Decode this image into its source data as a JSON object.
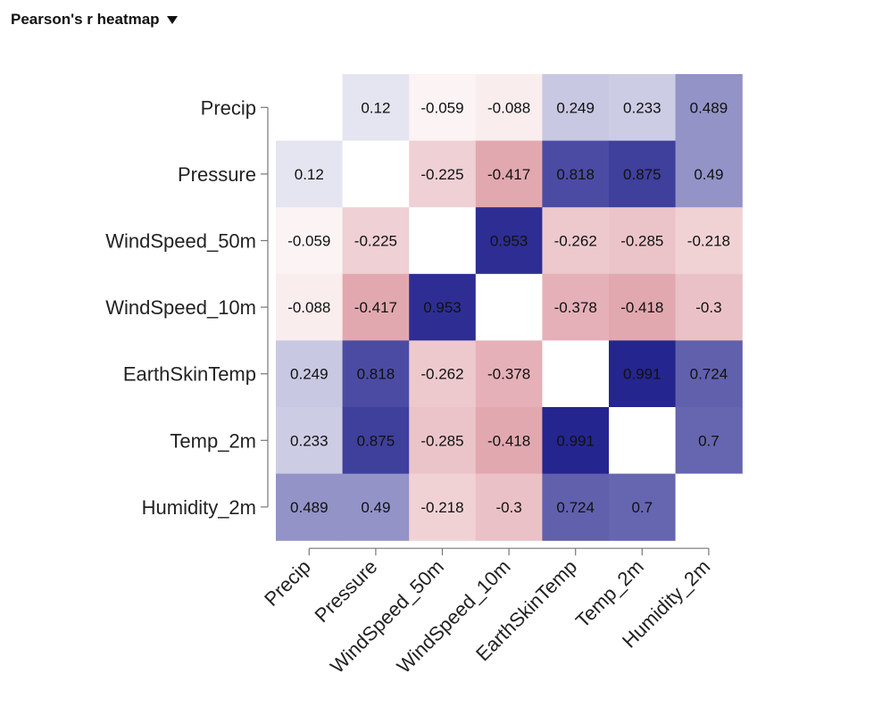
{
  "header": {
    "title": "Pearson's r heatmap",
    "toggle_icon": "triangle-down-icon"
  },
  "chart_data": {
    "type": "heatmap",
    "variables": [
      "Precip",
      "Pressure",
      "WindSpeed_50m",
      "WindSpeed_10m",
      "EarthSkinTemp",
      "Temp_2m",
      "Humidity_2m"
    ],
    "x_tick_labels": [
      "Precip",
      "Pressure",
      "WindSpeed_50m",
      "WindSpeed_10m",
      "EarthSkinTemp",
      "Temp_2m",
      "Humidity_2m"
    ],
    "y_tick_labels": [
      "Precip",
      "Pressure",
      "WindSpeed_50m",
      "WindSpeed_10m",
      "EarthSkinTemp",
      "Temp_2m",
      "Humidity_2m"
    ],
    "values": [
      [
        null,
        0.12,
        -0.059,
        -0.088,
        0.249,
        0.233,
        0.489
      ],
      [
        0.12,
        null,
        -0.225,
        -0.417,
        0.818,
        0.875,
        0.49
      ],
      [
        -0.059,
        -0.225,
        null,
        0.953,
        -0.262,
        -0.285,
        -0.218
      ],
      [
        -0.088,
        -0.417,
        0.953,
        null,
        -0.378,
        -0.418,
        -0.3
      ],
      [
        0.249,
        0.818,
        -0.262,
        -0.378,
        null,
        0.991,
        0.724
      ],
      [
        0.233,
        0.875,
        -0.285,
        -0.418,
        0.991,
        null,
        0.7
      ],
      [
        0.489,
        0.49,
        -0.218,
        -0.3,
        0.724,
        0.7,
        null
      ]
    ],
    "labels": [
      [
        "",
        "0.12",
        "-0.059",
        "-0.088",
        "0.249",
        "0.233",
        "0.489"
      ],
      [
        "0.12",
        "",
        "-0.225",
        "-0.417",
        "0.818",
        "0.875",
        "0.49"
      ],
      [
        "-0.059",
        "-0.225",
        "",
        "0.953",
        "-0.262",
        "-0.285",
        "-0.218"
      ],
      [
        "-0.088",
        "-0.417",
        "0.953",
        "",
        "-0.378",
        "-0.418",
        "-0.3"
      ],
      [
        "0.249",
        "0.818",
        "-0.262",
        "-0.378",
        "",
        "0.991",
        "0.724"
      ],
      [
        "0.233",
        "0.875",
        "-0.285",
        "-0.418",
        "0.991",
        "",
        "0.7"
      ],
      [
        "0.489",
        "0.49",
        "-0.218",
        "-0.3",
        "0.724",
        "0.7",
        ""
      ]
    ],
    "title": "",
    "xlabel": "",
    "ylabel": "",
    "value_range": [
      -1,
      1
    ],
    "colors": {
      "negative": "#b2182b",
      "zero": "#ffffff",
      "positive": "#23238e"
    },
    "diagonal": "blank",
    "grid": false,
    "legend": "none"
  }
}
